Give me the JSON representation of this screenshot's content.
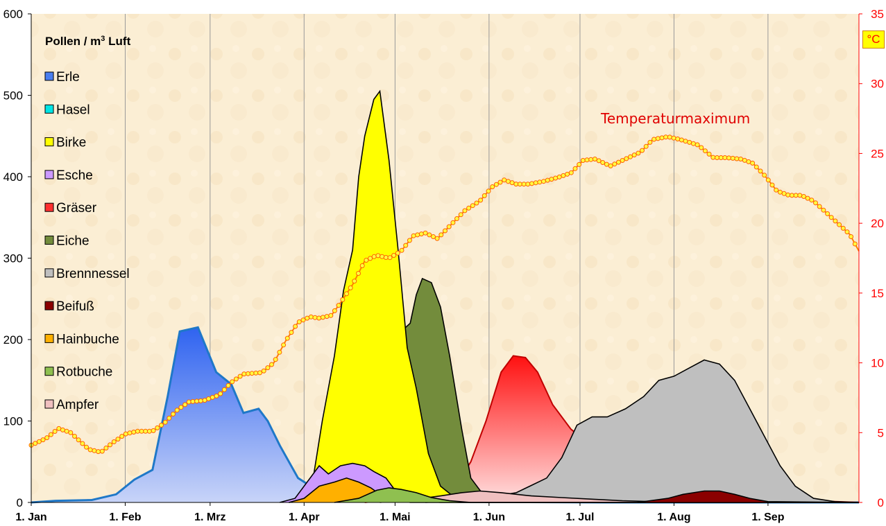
{
  "chart_data": {
    "type": "area",
    "title": "",
    "ylabel_left": "Pollen / m³ Luft",
    "ylabel_left_main": "Pollen / m",
    "ylabel_left_sup": "3",
    "ylabel_left_tail": " Luft",
    "ylabel_right_unit": "°C",
    "ylim_left": [
      0,
      600
    ],
    "ylim_right": [
      0,
      35
    ],
    "y_ticks_left": [
      "0",
      "100",
      "200",
      "300",
      "400",
      "500",
      "600"
    ],
    "y_ticks_right": [
      "0",
      "5",
      "10",
      "15",
      "20",
      "25",
      "30",
      "35"
    ],
    "x_tick_labels": [
      "1. Jan",
      "1. Feb",
      "1. Mrz",
      "1. Apr",
      "1. Mai",
      "1. Jun",
      "1. Jul",
      "1. Aug",
      "1. Sep"
    ],
    "x_tick_days": [
      0,
      31,
      59,
      90,
      120,
      151,
      181,
      212,
      243
    ],
    "xlim_days": [
      0,
      273
    ],
    "annotation": "Temperaturmaximum",
    "series": [
      {
        "name": "Erle",
        "color": "#4a7ff0",
        "stroke": "#1f78c8",
        "points": [
          [
            0,
            0
          ],
          [
            8,
            2
          ],
          [
            20,
            3
          ],
          [
            28,
            10
          ],
          [
            34,
            28
          ],
          [
            40,
            40
          ],
          [
            45,
            130
          ],
          [
            49,
            210
          ],
          [
            55,
            215
          ],
          [
            61,
            160
          ],
          [
            66,
            145
          ],
          [
            70,
            110
          ],
          [
            75,
            115
          ],
          [
            78,
            100
          ],
          [
            82,
            70
          ],
          [
            88,
            30
          ],
          [
            93,
            18
          ],
          [
            100,
            25
          ],
          [
            106,
            18
          ],
          [
            109,
            5
          ],
          [
            115,
            2
          ],
          [
            130,
            1
          ],
          [
            190,
            0
          ],
          [
            273,
            0
          ]
        ]
      },
      {
        "name": "Hasel",
        "color": "#00e5e5",
        "stroke": "#000000",
        "points": [
          [
            0,
            0
          ],
          [
            10,
            2
          ],
          [
            25,
            4
          ],
          [
            35,
            11
          ],
          [
            45,
            8
          ],
          [
            55,
            11
          ],
          [
            65,
            10
          ],
          [
            75,
            5
          ],
          [
            85,
            3
          ],
          [
            92,
            2
          ],
          [
            105,
            1
          ],
          [
            273,
            0
          ]
        ]
      },
      {
        "name": "Birke",
        "color": "#ffff00",
        "stroke": "#000000",
        "points": [
          [
            85,
            0
          ],
          [
            90,
            2
          ],
          [
            93,
            30
          ],
          [
            96,
            100
          ],
          [
            100,
            180
          ],
          [
            103,
            260
          ],
          [
            106,
            310
          ],
          [
            108,
            400
          ],
          [
            110,
            450
          ],
          [
            113,
            495
          ],
          [
            115,
            505
          ],
          [
            118,
            420
          ],
          [
            121,
            310
          ],
          [
            124,
            190
          ],
          [
            127,
            140
          ],
          [
            131,
            60
          ],
          [
            135,
            20
          ],
          [
            140,
            5
          ],
          [
            150,
            0
          ],
          [
            273,
            0
          ]
        ]
      },
      {
        "name": "Esche",
        "color": "#cc99ff",
        "stroke": "#000000",
        "points": [
          [
            82,
            0
          ],
          [
            87,
            5
          ],
          [
            92,
            30
          ],
          [
            95,
            45
          ],
          [
            98,
            35
          ],
          [
            102,
            45
          ],
          [
            106,
            48
          ],
          [
            110,
            45
          ],
          [
            113,
            38
          ],
          [
            117,
            30
          ],
          [
            120,
            15
          ],
          [
            125,
            3
          ],
          [
            135,
            0
          ],
          [
            273,
            0
          ]
        ]
      },
      {
        "name": "Gräser",
        "color": "#ff3030",
        "stroke": "#c00000",
        "points": [
          [
            110,
            0
          ],
          [
            120,
            4
          ],
          [
            130,
            8
          ],
          [
            140,
            20
          ],
          [
            145,
            50
          ],
          [
            150,
            100
          ],
          [
            155,
            160
          ],
          [
            159,
            180
          ],
          [
            163,
            178
          ],
          [
            167,
            160
          ],
          [
            172,
            120
          ],
          [
            178,
            90
          ],
          [
            183,
            75
          ],
          [
            188,
            60
          ],
          [
            194,
            40
          ],
          [
            200,
            25
          ],
          [
            210,
            12
          ],
          [
            220,
            8
          ],
          [
            230,
            6
          ],
          [
            240,
            4
          ],
          [
            255,
            2
          ],
          [
            265,
            1
          ],
          [
            273,
            0
          ]
        ]
      },
      {
        "name": "Eiche",
        "color": "#738c3c",
        "stroke": "#000000",
        "points": [
          [
            105,
            0
          ],
          [
            108,
            20
          ],
          [
            112,
            100
          ],
          [
            115,
            170
          ],
          [
            118,
            190
          ],
          [
            122,
            210
          ],
          [
            125,
            220
          ],
          [
            127,
            255
          ],
          [
            129,
            275
          ],
          [
            132,
            270
          ],
          [
            135,
            240
          ],
          [
            138,
            180
          ],
          [
            142,
            90
          ],
          [
            145,
            30
          ],
          [
            150,
            5
          ],
          [
            160,
            0
          ],
          [
            273,
            0
          ]
        ]
      },
      {
        "name": "Brennnessel",
        "color": "#bfbfbf",
        "stroke": "#000000",
        "points": [
          [
            130,
            0
          ],
          [
            140,
            2
          ],
          [
            150,
            6
          ],
          [
            160,
            12
          ],
          [
            170,
            30
          ],
          [
            175,
            55
          ],
          [
            180,
            95
          ],
          [
            185,
            105
          ],
          [
            190,
            105
          ],
          [
            196,
            115
          ],
          [
            202,
            130
          ],
          [
            207,
            150
          ],
          [
            212,
            155
          ],
          [
            217,
            165
          ],
          [
            222,
            175
          ],
          [
            227,
            170
          ],
          [
            232,
            150
          ],
          [
            237,
            115
          ],
          [
            242,
            80
          ],
          [
            247,
            45
          ],
          [
            252,
            20
          ],
          [
            258,
            5
          ],
          [
            265,
            1
          ],
          [
            273,
            0
          ]
        ]
      },
      {
        "name": "Beifuß",
        "color": "#8b0000",
        "stroke": "#000000",
        "points": [
          [
            200,
            0
          ],
          [
            210,
            5
          ],
          [
            215,
            10
          ],
          [
            222,
            14
          ],
          [
            227,
            14
          ],
          [
            232,
            10
          ],
          [
            237,
            5
          ],
          [
            243,
            1
          ],
          [
            273,
            0
          ]
        ]
      },
      {
        "name": "Hainbuche",
        "color": "#ffb000",
        "stroke": "#000000",
        "points": [
          [
            85,
            0
          ],
          [
            90,
            5
          ],
          [
            95,
            20
          ],
          [
            100,
            25
          ],
          [
            104,
            30
          ],
          [
            108,
            25
          ],
          [
            112,
            18
          ],
          [
            115,
            10
          ],
          [
            120,
            3
          ],
          [
            125,
            0
          ],
          [
            273,
            0
          ]
        ]
      },
      {
        "name": "Rotbuche",
        "color": "#8fc050",
        "stroke": "#000000",
        "points": [
          [
            100,
            0
          ],
          [
            108,
            5
          ],
          [
            114,
            15
          ],
          [
            118,
            18
          ],
          [
            122,
            16
          ],
          [
            127,
            12
          ],
          [
            132,
            6
          ],
          [
            138,
            2
          ],
          [
            145,
            0
          ],
          [
            273,
            0
          ]
        ]
      },
      {
        "name": "Ampfer",
        "color": "#f0c0c0",
        "stroke": "#000000",
        "points": [
          [
            115,
            0
          ],
          [
            125,
            3
          ],
          [
            135,
            8
          ],
          [
            142,
            12
          ],
          [
            148,
            14
          ],
          [
            155,
            12
          ],
          [
            165,
            8
          ],
          [
            175,
            6
          ],
          [
            185,
            4
          ],
          [
            195,
            2
          ],
          [
            205,
            1
          ],
          [
            215,
            0
          ],
          [
            273,
            0
          ]
        ]
      }
    ],
    "temperature": {
      "name": "Temperaturmaximum",
      "color": "#ff8000",
      "points": [
        [
          0,
          4.1
        ],
        [
          5,
          4.6
        ],
        [
          9,
          5.3
        ],
        [
          13,
          5
        ],
        [
          16,
          4.4
        ],
        [
          19,
          3.8
        ],
        [
          23,
          3.6
        ],
        [
          27,
          4.3
        ],
        [
          31,
          4.9
        ],
        [
          35,
          5.1
        ],
        [
          40,
          5.1
        ],
        [
          44,
          5.7
        ],
        [
          48,
          6.6
        ],
        [
          52,
          7.2
        ],
        [
          57,
          7.3
        ],
        [
          62,
          7.7
        ],
        [
          66,
          8.6
        ],
        [
          70,
          9.2
        ],
        [
          76,
          9.3
        ],
        [
          80,
          10
        ],
        [
          84,
          11.6
        ],
        [
          88,
          12.9
        ],
        [
          92,
          13.3
        ],
        [
          95,
          13.2
        ],
        [
          99,
          13.4
        ],
        [
          102,
          14.3
        ],
        [
          106,
          15.6
        ],
        [
          110,
          17.3
        ],
        [
          114,
          17.7
        ],
        [
          118,
          17.5
        ],
        [
          122,
          18
        ],
        [
          126,
          19.1
        ],
        [
          130,
          19.3
        ],
        [
          134,
          18.9
        ],
        [
          138,
          19.8
        ],
        [
          143,
          20.9
        ],
        [
          148,
          21.6
        ],
        [
          152,
          22.6
        ],
        [
          156,
          23.1
        ],
        [
          160,
          22.8
        ],
        [
          164,
          22.8
        ],
        [
          169,
          23
        ],
        [
          174,
          23.3
        ],
        [
          178,
          23.6
        ],
        [
          182,
          24.5
        ],
        [
          186,
          24.6
        ],
        [
          191,
          24.1
        ],
        [
          196,
          24.6
        ],
        [
          201,
          25.1
        ],
        [
          205,
          26
        ],
        [
          210,
          26.2
        ],
        [
          214,
          26
        ],
        [
          220,
          25.6
        ],
        [
          225,
          24.7
        ],
        [
          229,
          24.7
        ],
        [
          234,
          24.6
        ],
        [
          238,
          24.3
        ],
        [
          242,
          23.4
        ],
        [
          246,
          22.3
        ],
        [
          250,
          22
        ],
        [
          254,
          22
        ],
        [
          258,
          21.6
        ],
        [
          262,
          20.8
        ],
        [
          266,
          20
        ],
        [
          270,
          19.2
        ],
        [
          273,
          18
        ]
      ]
    }
  }
}
